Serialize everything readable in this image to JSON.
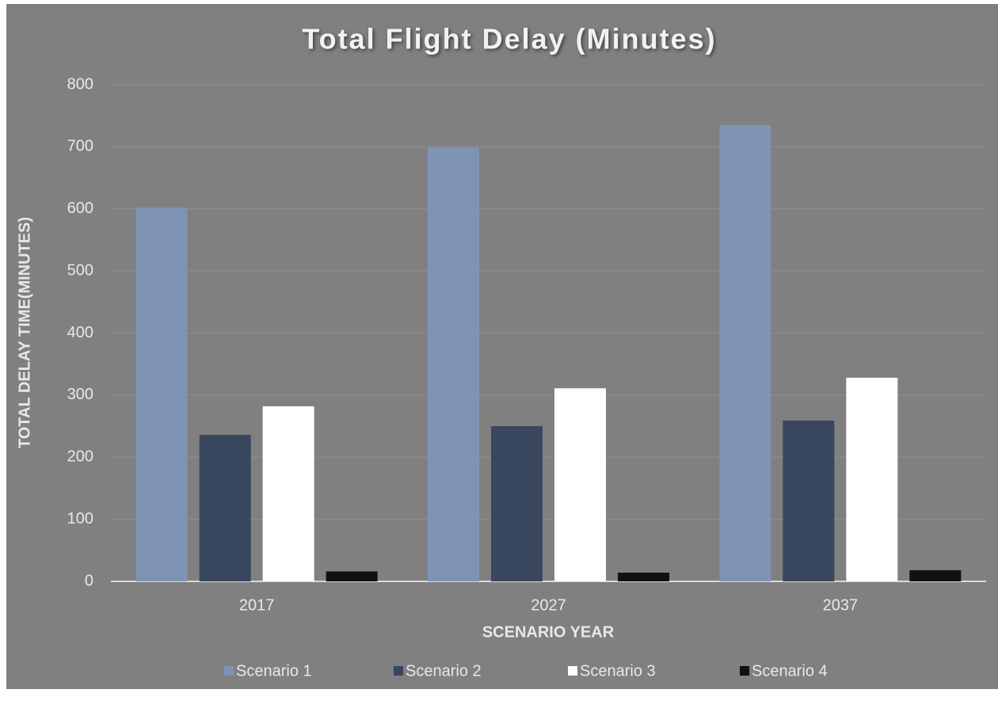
{
  "chart_data": {
    "type": "bar",
    "title": "Total Flight Delay (Minutes)",
    "x_label": "SCENARIO YEAR",
    "y_label": "TOTAL DELAY TIME(MINUTES)",
    "categories": [
      "2017",
      "2027",
      "2037"
    ],
    "series": [
      {
        "name": "Scenario 1",
        "color": "#7f93b5",
        "values": [
          602,
          699,
          735
        ]
      },
      {
        "name": "Scenario 2",
        "color": "#38475e",
        "values": [
          236,
          250,
          259
        ]
      },
      {
        "name": "Scenario 3",
        "color": "#ffffff",
        "values": [
          282,
          311,
          328
        ]
      },
      {
        "name": "Scenario 4",
        "color": "#111111",
        "values": [
          16,
          14,
          18
        ]
      }
    ],
    "ylim": [
      0,
      800
    ],
    "yticks": [
      0,
      100,
      200,
      300,
      400,
      500,
      600,
      700,
      800
    ],
    "grid": true,
    "legend": "bottom"
  }
}
